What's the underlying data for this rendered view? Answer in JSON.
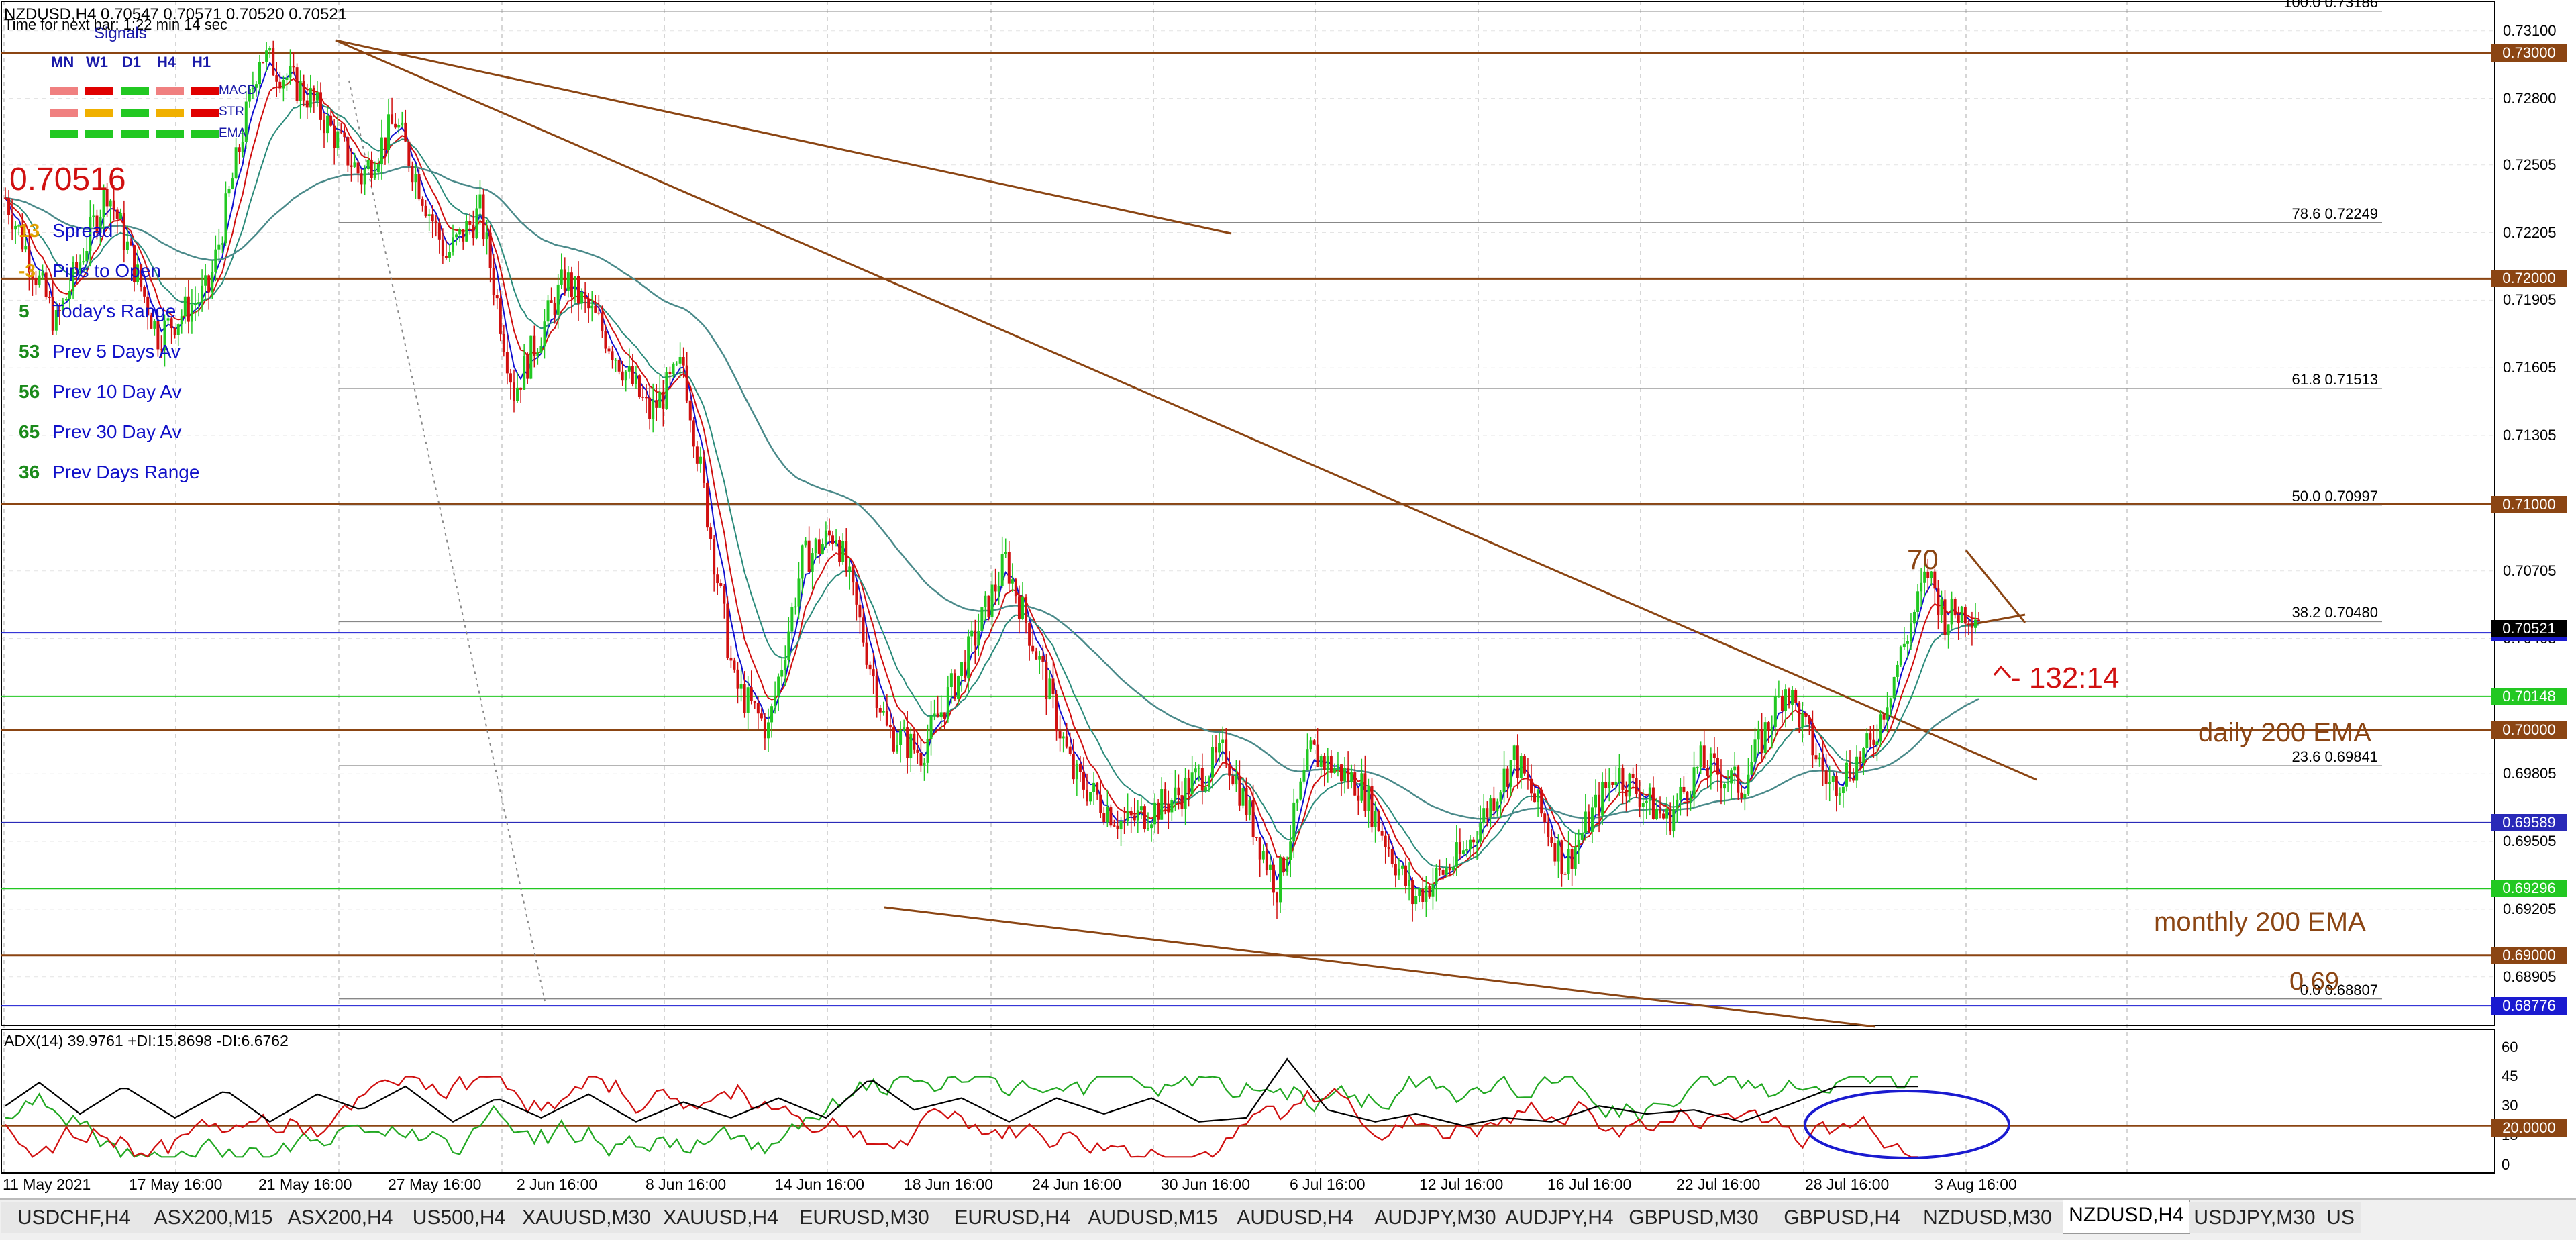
{
  "header": {
    "symbol_line": "NZDUSD,H4  0.70547 0.70571 0.70520 0.70521",
    "timer_line": "Time for next bar: 1:22 min 14 sec"
  },
  "signals": {
    "title": "Signals",
    "timeframes": [
      "MN",
      "W1",
      "D1",
      "H4",
      "H1"
    ],
    "rows": [
      {
        "label": "MACD",
        "colors": [
          "#f08080",
          "#e00000",
          "#22c822",
          "#f08080",
          "#e00000"
        ]
      },
      {
        "label": "STR",
        "colors": [
          "#f08080",
          "#f0b000",
          "#22c822",
          "#f0b000",
          "#e00000"
        ]
      },
      {
        "label": "EMA",
        "colors": [
          "#22c822",
          "#22c822",
          "#22c822",
          "#22c822",
          "#22c822"
        ]
      }
    ]
  },
  "info_panel": {
    "price": "0.70516",
    "rows": [
      {
        "value": "13",
        "label": "Spread",
        "color": "#e0a000"
      },
      {
        "value": "-3",
        "label": "Pips to Open",
        "color": "#e0a000"
      },
      {
        "value": "5",
        "label": "Today's Range",
        "color": "#1a8a1a"
      },
      {
        "value": "53",
        "label": "Prev 5 Days Av",
        "color": "#1a8a1a"
      },
      {
        "value": "56",
        "label": "Prev 10 Day Av",
        "color": "#1a8a1a"
      },
      {
        "value": "65",
        "label": "Prev 30 Day Av",
        "color": "#1a8a1a"
      },
      {
        "value": "36",
        "label": "Prev Days Range",
        "color": "#1a8a1a"
      }
    ]
  },
  "chart_data": {
    "type": "candlestick",
    "symbol": "NZDUSD",
    "timeframe": "H4",
    "price_axis": {
      "ylim": [
        0.6869,
        0.7323
      ],
      "ticks": [
        "0.73100",
        "0.72800",
        "0.72505",
        "0.72205",
        "0.71905",
        "0.71605",
        "0.71305",
        "0.71005",
        "0.70705",
        "0.70405",
        "0.69805",
        "0.69505",
        "0.69205",
        "0.68905"
      ]
    },
    "x_labels": [
      "11 May 2021",
      "17 May 16:00",
      "21 May 16:00",
      "27 May 16:00",
      "2 Jun 16:00",
      "8 Jun 16:00",
      "14 Jun 16:00",
      "18 Jun 16:00",
      "24 Jun 16:00",
      "30 Jun 16:00",
      "6 Jul 16:00",
      "12 Jul 16:00",
      "16 Jul 16:00",
      "22 Jul 16:00",
      "28 Jul 16:00",
      "3 Aug 16:00"
    ],
    "x_range": [
      0,
      600
    ],
    "price_path": [
      [
        0,
        0.7236
      ],
      [
        15,
        0.718
      ],
      [
        30,
        0.724
      ],
      [
        45,
        0.7175
      ],
      [
        60,
        0.7195
      ],
      [
        75,
        0.73
      ],
      [
        90,
        0.728
      ],
      [
        105,
        0.7245
      ],
      [
        115,
        0.727
      ],
      [
        130,
        0.721
      ],
      [
        140,
        0.723
      ],
      [
        150,
        0.715
      ],
      [
        165,
        0.72
      ],
      [
        175,
        0.718
      ],
      [
        190,
        0.714
      ],
      [
        200,
        0.7162
      ],
      [
        215,
        0.702
      ],
      [
        225,
        0.7
      ],
      [
        235,
        0.7075
      ],
      [
        245,
        0.7088
      ],
      [
        260,
        0.7
      ],
      [
        270,
        0.699
      ],
      [
        283,
        0.703
      ],
      [
        295,
        0.7075
      ],
      [
        305,
        0.703
      ],
      [
        315,
        0.698
      ],
      [
        330,
        0.6958
      ],
      [
        345,
        0.697
      ],
      [
        360,
        0.699
      ],
      [
        375,
        0.693
      ],
      [
        385,
        0.699
      ],
      [
        400,
        0.6975
      ],
      [
        415,
        0.6925
      ],
      [
        430,
        0.6945
      ],
      [
        445,
        0.6988
      ],
      [
        460,
        0.694
      ],
      [
        475,
        0.6982
      ],
      [
        490,
        0.696
      ],
      [
        500,
        0.6985
      ],
      [
        512,
        0.6975
      ],
      [
        525,
        0.702
      ],
      [
        538,
        0.6975
      ],
      [
        550,
        0.6992
      ],
      [
        560,
        0.7038
      ],
      [
        567,
        0.707
      ],
      [
        572,
        0.705
      ],
      [
        578,
        0.7053
      ],
      [
        582,
        0.7052
      ]
    ],
    "series": [
      {
        "name": "EMA fast",
        "color": "#1010d0"
      },
      {
        "name": "EMA medium",
        "color": "#d01010"
      },
      {
        "name": "EMA slow",
        "color": "#2a8a7a"
      },
      {
        "name": "EMA 200",
        "color": "#4a8a8a"
      }
    ],
    "fibonacci": [
      {
        "level": "100.0",
        "price": "0.73186"
      },
      {
        "level": "78.6",
        "price": "0.72249"
      },
      {
        "level": "61.8",
        "price": "0.71513"
      },
      {
        "level": "50.0",
        "price": "0.70997"
      },
      {
        "level": "38.2",
        "price": "0.70480"
      },
      {
        "level": "23.6",
        "price": "0.69841"
      },
      {
        "level": "0.0",
        "price": "0.68807"
      }
    ],
    "horizontal_levels": [
      {
        "price": "0.73000",
        "color": "#8b4513"
      },
      {
        "price": "0.72000",
        "color": "#8b4513"
      },
      {
        "price": "0.71000",
        "color": "#8b4513"
      },
      {
        "price": "0.70430",
        "color": "#1a1ad0"
      },
      {
        "price": "0.70148",
        "color": "#22c822"
      },
      {
        "price": "0.70000",
        "color": "#8b4513"
      },
      {
        "price": "0.69589",
        "color": "#2a2ab8"
      },
      {
        "price": "0.69296",
        "color": "#22c822"
      },
      {
        "price": "0.69000",
        "color": "#8b4513"
      },
      {
        "price": "0.68776",
        "color": "#1a1ad0"
      }
    ],
    "current_price": "0.70521",
    "annotations": [
      {
        "text": "70",
        "color": "#8b4513"
      },
      {
        "text": "- 132:14",
        "color": "#d01010"
      },
      {
        "text": "daily 200 EMA",
        "color": "#8b4513"
      },
      {
        "text": "monthly 200 EMA",
        "color": "#8b4513"
      },
      {
        "text": "0.69",
        "color": "#8b4513"
      }
    ],
    "adx": {
      "title": "ADX(14) 39.9761 +DI:15.8698 -DI:6.6762",
      "ylim": [
        0,
        65
      ],
      "ticks": [
        "60",
        "45",
        "30",
        "15",
        "0"
      ],
      "level_box": "20.0000",
      "series": [
        {
          "name": "ADX",
          "color": "#000000"
        },
        {
          "name": "+DI",
          "color": "#22a822"
        },
        {
          "name": "-DI",
          "color": "#d01010"
        }
      ],
      "adx_path": [
        [
          0,
          30
        ],
        [
          10,
          42
        ],
        [
          22,
          26
        ],
        [
          35,
          40
        ],
        [
          50,
          24
        ],
        [
          65,
          38
        ],
        [
          78,
          22
        ],
        [
          92,
          36
        ],
        [
          105,
          28
        ],
        [
          118,
          40
        ],
        [
          132,
          22
        ],
        [
          145,
          34
        ],
        [
          158,
          24
        ],
        [
          172,
          36
        ],
        [
          186,
          22
        ],
        [
          200,
          32
        ],
        [
          214,
          24
        ],
        [
          228,
          34
        ],
        [
          242,
          24
        ],
        [
          255,
          44
        ],
        [
          268,
          28
        ],
        [
          282,
          34
        ],
        [
          296,
          22
        ],
        [
          310,
          34
        ],
        [
          324,
          26
        ],
        [
          338,
          34
        ],
        [
          352,
          22
        ],
        [
          366,
          24
        ],
        [
          378,
          54
        ],
        [
          390,
          28
        ],
        [
          404,
          22
        ],
        [
          416,
          26
        ],
        [
          430,
          20
        ],
        [
          442,
          24
        ],
        [
          456,
          22
        ],
        [
          470,
          30
        ],
        [
          484,
          26
        ],
        [
          498,
          28
        ],
        [
          512,
          22
        ],
        [
          525,
          30
        ],
        [
          540,
          40
        ],
        [
          560,
          40
        ],
        [
          565,
          40
        ]
      ]
    }
  },
  "tabs": {
    "items": [
      "USDCHF,H4",
      "ASX200,M15",
      "ASX200,H4",
      "US500,H4",
      "XAUUSD,M30",
      "XAUUSD,H4",
      "EURUSD,M30",
      "EURUSD,H4",
      "AUDUSD,M15",
      "AUDUSD,H4",
      "AUDJPY,M30",
      "AUDJPY,H4",
      "GBPUSD,M30",
      "GBPUSD,H4",
      "NZDUSD,M30",
      "NZDUSD,H4",
      "USDJPY,M30",
      "US"
    ],
    "active_index": 15
  }
}
